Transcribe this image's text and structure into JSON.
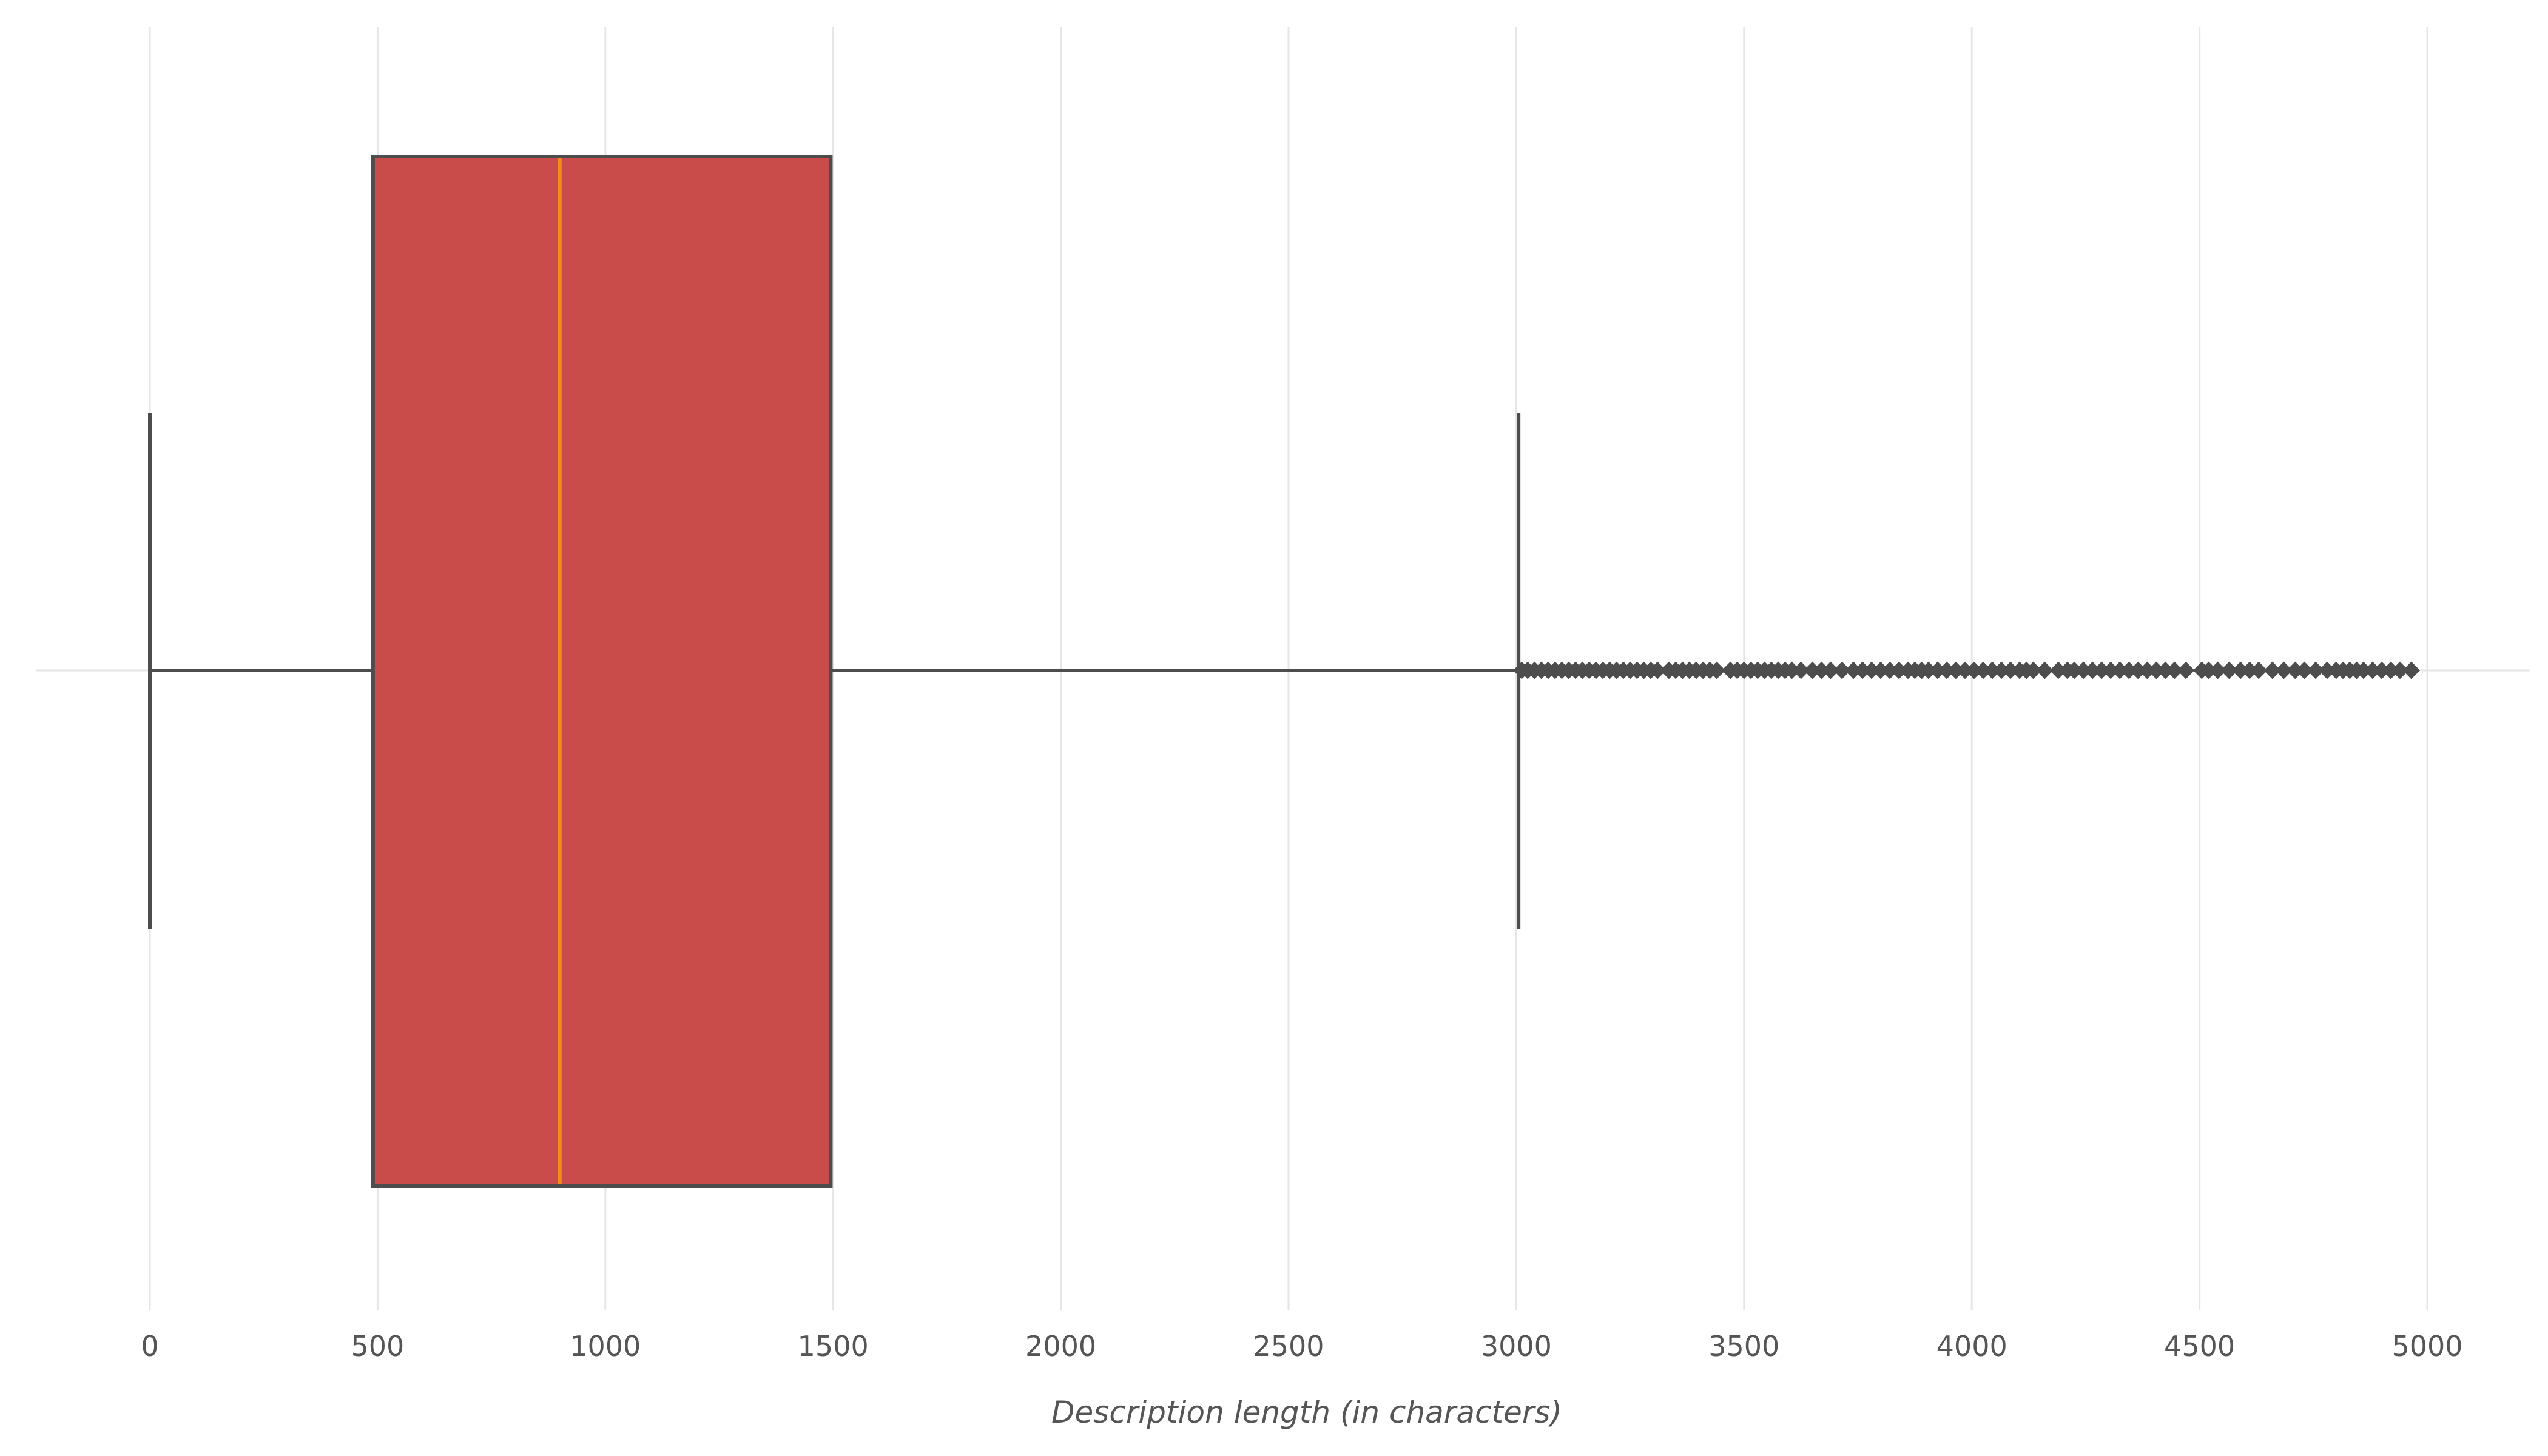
{
  "chart_data": {
    "type": "box",
    "orientation": "horizontal",
    "xlabel": "Description length (in characters)",
    "ylabel": "",
    "title": "",
    "xlim": [
      -250,
      5250
    ],
    "xticks": [
      0,
      500,
      1000,
      1500,
      2000,
      2500,
      3000,
      3500,
      4000,
      4500,
      5000
    ],
    "xtick_labels": [
      "0",
      "500",
      "1000",
      "1500",
      "2000",
      "2500",
      "3000",
      "3500",
      "4000",
      "4500",
      "5000"
    ],
    "grid": true,
    "box": {
      "whisker_low": 0,
      "q1": 490,
      "median": 900,
      "q3": 1495,
      "whisker_high": 3005
    },
    "outliers": [
      3012,
      3025,
      3040,
      3055,
      3070,
      3085,
      3100,
      3115,
      3130,
      3145,
      3160,
      3175,
      3190,
      3205,
      3220,
      3235,
      3250,
      3265,
      3280,
      3295,
      3310,
      3335,
      3350,
      3365,
      3380,
      3395,
      3410,
      3425,
      3440,
      3470,
      3485,
      3500,
      3515,
      3530,
      3545,
      3560,
      3575,
      3590,
      3605,
      3625,
      3650,
      3670,
      3690,
      3715,
      3740,
      3760,
      3780,
      3800,
      3820,
      3840,
      3860,
      3875,
      3890,
      3905,
      3925,
      3945,
      3965,
      3985,
      4005,
      4025,
      4045,
      4065,
      4085,
      4105,
      4120,
      4135,
      4160,
      4190,
      4210,
      4225,
      4245,
      4265,
      4285,
      4305,
      4325,
      4345,
      4365,
      4385,
      4405,
      4425,
      4445,
      4470,
      4505,
      4520,
      4540,
      4565,
      4590,
      4610,
      4630,
      4660,
      4685,
      4710,
      4730,
      4755,
      4780,
      4800,
      4815,
      4830,
      4845,
      4860,
      4880,
      4900,
      4920,
      4940,
      4965
    ],
    "colors": {
      "box_fill": "#c94c4a",
      "box_edge": "#4d4d4d",
      "median": "#f28c1e",
      "whisker": "#4d4d4d",
      "outlier": "#4d4d4d",
      "grid": "#e6e6e6",
      "text": "#555555"
    }
  }
}
